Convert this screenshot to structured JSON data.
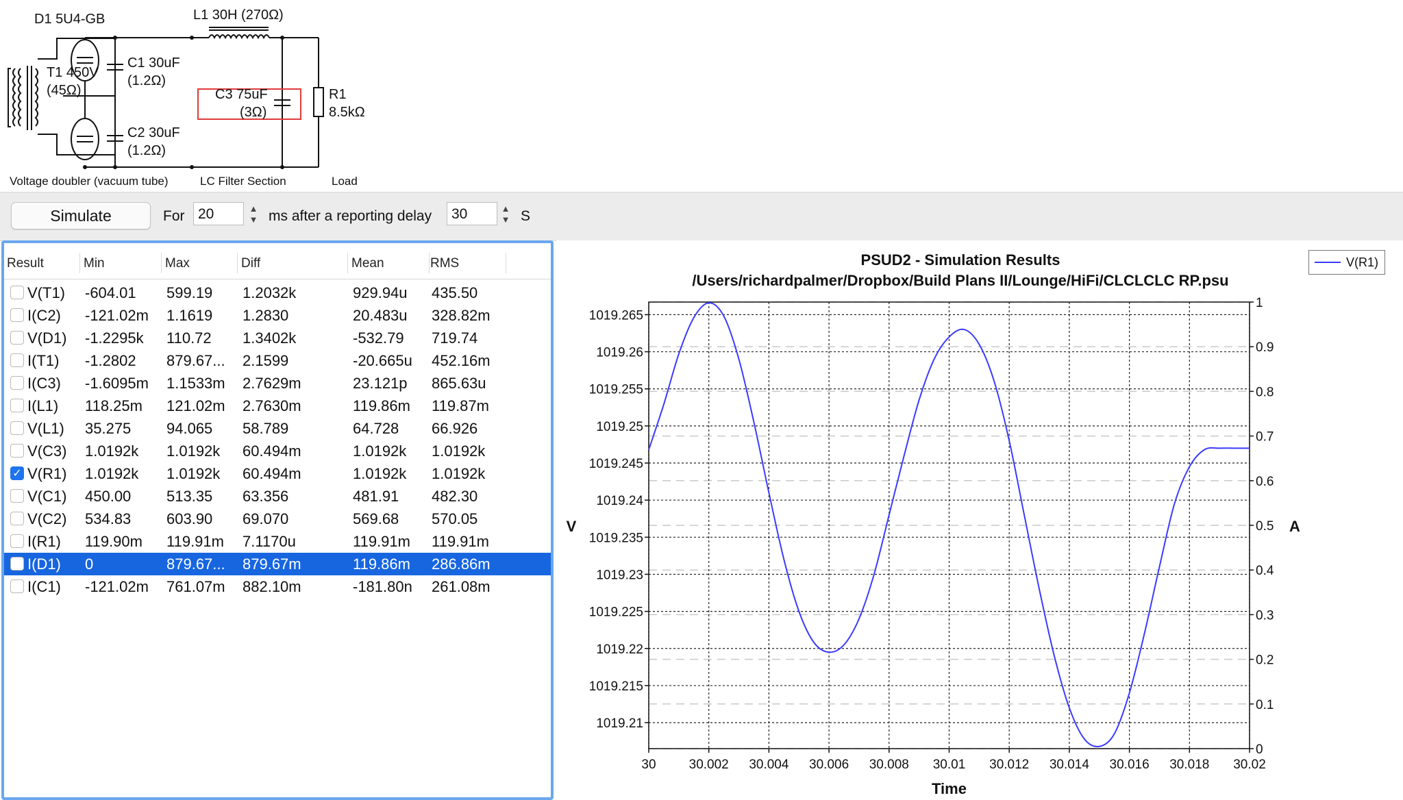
{
  "schematic": {
    "labels": {
      "d1": "D1 5U4-GB",
      "l1": "L1 30H (270Ω)",
      "t1": "T1 450V",
      "t1_r": "(45Ω)",
      "c1": "C1 30uF",
      "c1_r": "(1.2Ω)",
      "c2": "C2 30uF",
      "c2_r": "(1.2Ω)",
      "c3": "C3 75uF",
      "c3_r": "(3Ω)",
      "r1": "R1",
      "r1_v": "8.5kΩ"
    },
    "sections": [
      "Voltage doubler (vacuum tube)",
      "LC Filter Section",
      "Load"
    ]
  },
  "toolbar": {
    "simulate_label": "Simulate",
    "for_label": "For",
    "duration_value": "20",
    "ms_after_label": "ms after a reporting delay",
    "delay_value": "30",
    "s_label": "S"
  },
  "results": {
    "columns": [
      "Result",
      "Min",
      "Max",
      "Diff",
      "Mean",
      "RMS"
    ],
    "rows": [
      {
        "name": "V(T1)",
        "min": "-604.01",
        "max": "599.19",
        "diff": "1.2032k",
        "mean": "929.94u",
        "rms": "435.50",
        "checked": false,
        "selected": false
      },
      {
        "name": "I(C2)",
        "min": "-121.02m",
        "max": "1.1619",
        "diff": "1.2830",
        "mean": "20.483u",
        "rms": "328.82m",
        "checked": false,
        "selected": false
      },
      {
        "name": "V(D1)",
        "min": "-1.2295k",
        "max": "110.72",
        "diff": "1.3402k",
        "mean": "-532.79",
        "rms": "719.74",
        "checked": false,
        "selected": false
      },
      {
        "name": "I(T1)",
        "min": "-1.2802",
        "max": "879.67...",
        "diff": "2.1599",
        "mean": "-20.665u",
        "rms": "452.16m",
        "checked": false,
        "selected": false
      },
      {
        "name": "I(C3)",
        "min": "-1.6095m",
        "max": "1.1533m",
        "diff": "2.7629m",
        "mean": "23.121p",
        "rms": "865.63u",
        "checked": false,
        "selected": false
      },
      {
        "name": "I(L1)",
        "min": "118.25m",
        "max": "121.02m",
        "diff": "2.7630m",
        "mean": "119.86m",
        "rms": "119.87m",
        "checked": false,
        "selected": false
      },
      {
        "name": "V(L1)",
        "min": "35.275",
        "max": "94.065",
        "diff": "58.789",
        "mean": "64.728",
        "rms": "66.926",
        "checked": false,
        "selected": false
      },
      {
        "name": "V(C3)",
        "min": "1.0192k",
        "max": "1.0192k",
        "diff": "60.494m",
        "mean": "1.0192k",
        "rms": "1.0192k",
        "checked": false,
        "selected": false
      },
      {
        "name": "V(R1)",
        "min": "1.0192k",
        "max": "1.0192k",
        "diff": "60.494m",
        "mean": "1.0192k",
        "rms": "1.0192k",
        "checked": true,
        "selected": false
      },
      {
        "name": "V(C1)",
        "min": "450.00",
        "max": "513.35",
        "diff": "63.356",
        "mean": "481.91",
        "rms": "482.30",
        "checked": false,
        "selected": false
      },
      {
        "name": "V(C2)",
        "min": "534.83",
        "max": "603.90",
        "diff": "69.070",
        "mean": "569.68",
        "rms": "570.05",
        "checked": false,
        "selected": false
      },
      {
        "name": "I(R1)",
        "min": "119.90m",
        "max": "119.91m",
        "diff": "7.1170u",
        "mean": "119.91m",
        "rms": "119.91m",
        "checked": false,
        "selected": false
      },
      {
        "name": "I(D1)",
        "min": "0",
        "max": "879.67...",
        "diff": "879.67m",
        "mean": "119.86m",
        "rms": "286.86m",
        "checked": false,
        "selected": true
      },
      {
        "name": "I(C1)",
        "min": "-121.02m",
        "max": "761.07m",
        "diff": "882.10m",
        "mean": "-181.80n",
        "rms": "261.08m",
        "checked": false,
        "selected": false
      }
    ]
  },
  "chart_data": {
    "type": "line",
    "title": "PSUD2 - Simulation Results",
    "subtitle": "/Users/richardpalmer/Dropbox/Build Plans II/Lounge/HiFi/CLCLCLC RP.psu",
    "xlabel": "Time",
    "ylabel": "V",
    "y2label": "A",
    "xlim": [
      30,
      30.02
    ],
    "ylim": [
      1019.2065,
      1019.2667
    ],
    "y2lim": [
      0,
      1
    ],
    "x_ticks": [
      "30",
      "30.002",
      "30.004",
      "30.006",
      "30.008",
      "30.01",
      "30.012",
      "30.014",
      "30.016",
      "30.018",
      "30.02"
    ],
    "y_ticks": [
      "1019.265",
      "1019.26",
      "1019.255",
      "1019.25",
      "1019.245",
      "1019.24",
      "1019.235",
      "1019.23",
      "1019.225",
      "1019.22",
      "1019.215",
      "1019.21"
    ],
    "y2_ticks": [
      "1",
      "0.9",
      "0.8",
      "0.7",
      "0.6",
      "0.5",
      "0.4",
      "0.3",
      "0.2",
      "0.1",
      "0"
    ],
    "grid": true,
    "legend_position": "top-right",
    "series": [
      {
        "name": "V(R1)",
        "color": "#3a3aff",
        "x": [
          30.0,
          30.0005,
          30.001,
          30.0015,
          30.002,
          30.0025,
          30.003,
          30.0035,
          30.004,
          30.0045,
          30.005,
          30.0055,
          30.006,
          30.0065,
          30.007,
          30.0075,
          30.008,
          30.0085,
          30.009,
          30.0095,
          30.01,
          30.0105,
          30.011,
          30.0115,
          30.012,
          30.0125,
          30.013,
          30.0135,
          30.014,
          30.0145,
          30.015,
          30.0155,
          30.016,
          30.0165,
          30.017,
          30.0175,
          30.018,
          30.0185,
          30.019,
          30.0195,
          30.02
        ],
        "y": [
          1019.2468,
          1019.2529,
          1019.2597,
          1019.2646,
          1019.2666,
          1019.2648,
          1019.259,
          1019.2505,
          1019.241,
          1019.232,
          1019.225,
          1019.2208,
          1019.2195,
          1019.2205,
          1019.224,
          1019.23,
          1019.238,
          1019.246,
          1019.2535,
          1019.259,
          1019.262,
          1019.263,
          1019.261,
          1019.256,
          1019.248,
          1019.238,
          1019.228,
          1019.219,
          1019.212,
          1019.2078,
          1019.2068,
          1019.2085,
          1019.214,
          1019.222,
          1019.231,
          1019.2395,
          1019.2445,
          1019.2468,
          1019.247,
          1019.247,
          1019.247
        ]
      }
    ]
  }
}
